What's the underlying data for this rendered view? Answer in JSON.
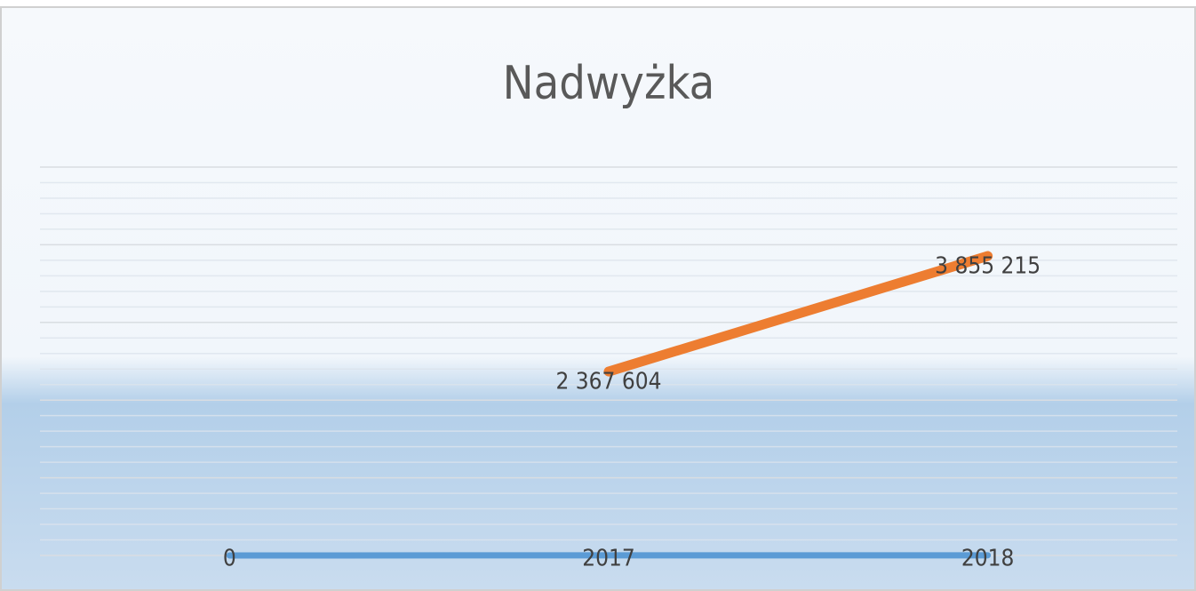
{
  "chart_data": {
    "type": "line",
    "title": "Nadwyżka",
    "categories": [
      null,
      null,
      null
    ],
    "series": [
      {
        "color": "#5b9bd5",
        "values": [
          0,
          2017,
          2018
        ]
      },
      {
        "color": "#ed7d31",
        "values": [
          null,
          2367604,
          3855215
        ],
        "value_labels": [
          null,
          "2 367 604",
          "3 855 215"
        ]
      }
    ],
    "ylim": [
      0,
      5000000
    ],
    "yticks": [
      0,
      1000000,
      2000000,
      3000000,
      4000000,
      5000000
    ],
    "grid": true,
    "minor_grid": true
  }
}
